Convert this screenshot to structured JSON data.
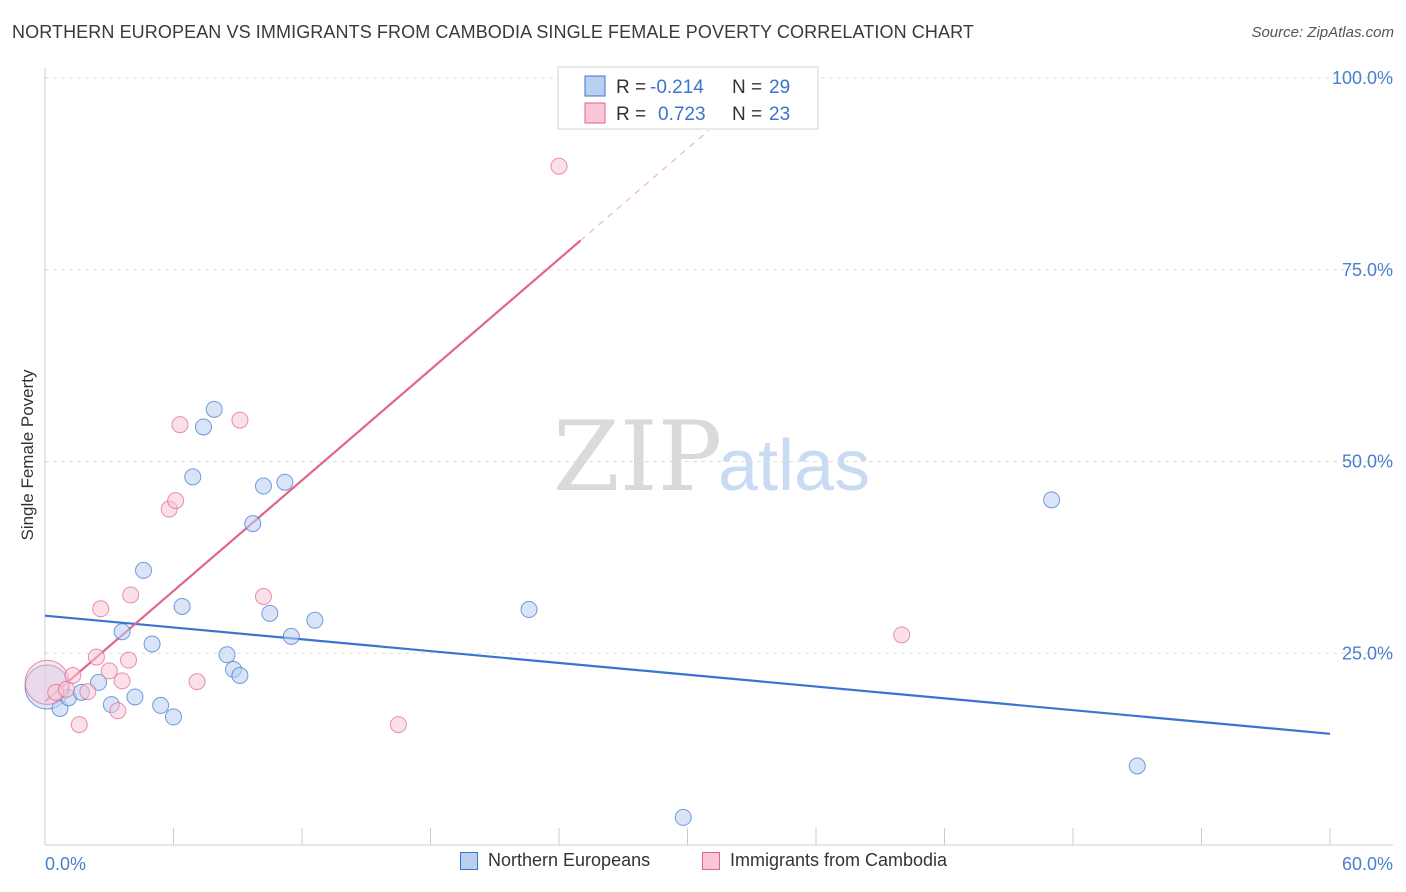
{
  "title": "NORTHERN EUROPEAN VS IMMIGRANTS FROM CAMBODIA SINGLE FEMALE POVERTY CORRELATION CHART",
  "source": "Source: ZipAtlas.com",
  "watermark": {
    "zip": "ZIP",
    "atlas": "atlas"
  },
  "colors": {
    "blue": "#3a74d0",
    "blue_fill": "#b9d0f1",
    "pink": "#e0648e",
    "pink_fill": "#f8c6d6",
    "tick": "#4a7fd0"
  },
  "legend_top": {
    "rows": [
      {
        "r_label": "R =",
        "r_value": "-0.214",
        "n_label": "N =",
        "n_value": "29"
      },
      {
        "r_label": "R =",
        "r_value": "0.723",
        "n_label": "N =",
        "n_value": "23"
      }
    ]
  },
  "legend_bottom": {
    "blue_label": "Northern Europeans",
    "pink_label": "Immigrants from Cambodia"
  },
  "chart_data": {
    "type": "scatter",
    "title": "NORTHERN EUROPEAN VS IMMIGRANTS FROM CAMBODIA SINGLE FEMALE POVERTY CORRELATION CHART",
    "xlabel": "",
    "ylabel": "Single Female Poverty",
    "xlim": [
      0,
      60
    ],
    "ylim": [
      0,
      100
    ],
    "x_tick_labels": [
      "0.0%",
      "60.0%"
    ],
    "y_ticks": [
      25,
      50,
      75,
      100
    ],
    "y_tick_labels": [
      "25.0%",
      "50.0%",
      "75.0%",
      "100.0%"
    ],
    "grid": true,
    "legend_position": "top-center",
    "series": [
      {
        "name": "Northern Europeans",
        "color": "#3a74d0",
        "points": [
          [
            0.1,
            20.6
          ],
          [
            0.7,
            17.8
          ],
          [
            1.1,
            19.2
          ],
          [
            1.7,
            19.9
          ],
          [
            2.5,
            21.2
          ],
          [
            3.1,
            18.3
          ],
          [
            3.6,
            27.8
          ],
          [
            4.2,
            19.3
          ],
          [
            4.6,
            35.8
          ],
          [
            5.0,
            26.2
          ],
          [
            5.4,
            18.2
          ],
          [
            6.0,
            16.7
          ],
          [
            6.4,
            31.1
          ],
          [
            6.9,
            48.0
          ],
          [
            7.4,
            54.5
          ],
          [
            7.9,
            56.8
          ],
          [
            8.5,
            24.8
          ],
          [
            8.8,
            22.9
          ],
          [
            9.1,
            22.1
          ],
          [
            9.7,
            41.9
          ],
          [
            10.2,
            46.8
          ],
          [
            10.5,
            30.2
          ],
          [
            11.2,
            47.3
          ],
          [
            11.5,
            27.2
          ],
          [
            12.6,
            29.3
          ],
          [
            22.6,
            30.7
          ],
          [
            29.8,
            3.6
          ],
          [
            47.0,
            45.0
          ],
          [
            51.0,
            10.3
          ]
        ],
        "trend": {
          "x0": 0,
          "y0": 29.9,
          "x1": 60,
          "y1": 14.5
        }
      },
      {
        "name": "Immigrants from Cambodia",
        "color": "#e0648e",
        "points": [
          [
            0.1,
            21.2
          ],
          [
            0.5,
            19.9
          ],
          [
            1.0,
            20.3
          ],
          [
            1.3,
            22.1
          ],
          [
            1.6,
            15.7
          ],
          [
            2.0,
            20.0
          ],
          [
            2.4,
            24.5
          ],
          [
            2.6,
            30.8
          ],
          [
            3.0,
            22.7
          ],
          [
            3.4,
            17.5
          ],
          [
            3.6,
            21.4
          ],
          [
            3.9,
            24.1
          ],
          [
            4.0,
            32.6
          ],
          [
            5.8,
            43.8
          ],
          [
            6.1,
            44.9
          ],
          [
            6.3,
            54.8
          ],
          [
            7.1,
            21.3
          ],
          [
            9.1,
            55.4
          ],
          [
            10.2,
            32.4
          ],
          [
            16.5,
            15.7
          ],
          [
            24.0,
            88.5
          ],
          [
            24.4,
            99.7
          ],
          [
            40.0,
            27.4
          ]
        ],
        "trend": {
          "x0": 0,
          "y0": 18.7,
          "x1": 25,
          "y1": 78.8
        },
        "trend_dashed": {
          "x0": 25,
          "y0": 78.8,
          "x1": 31,
          "y1": 93.2
        }
      }
    ]
  }
}
